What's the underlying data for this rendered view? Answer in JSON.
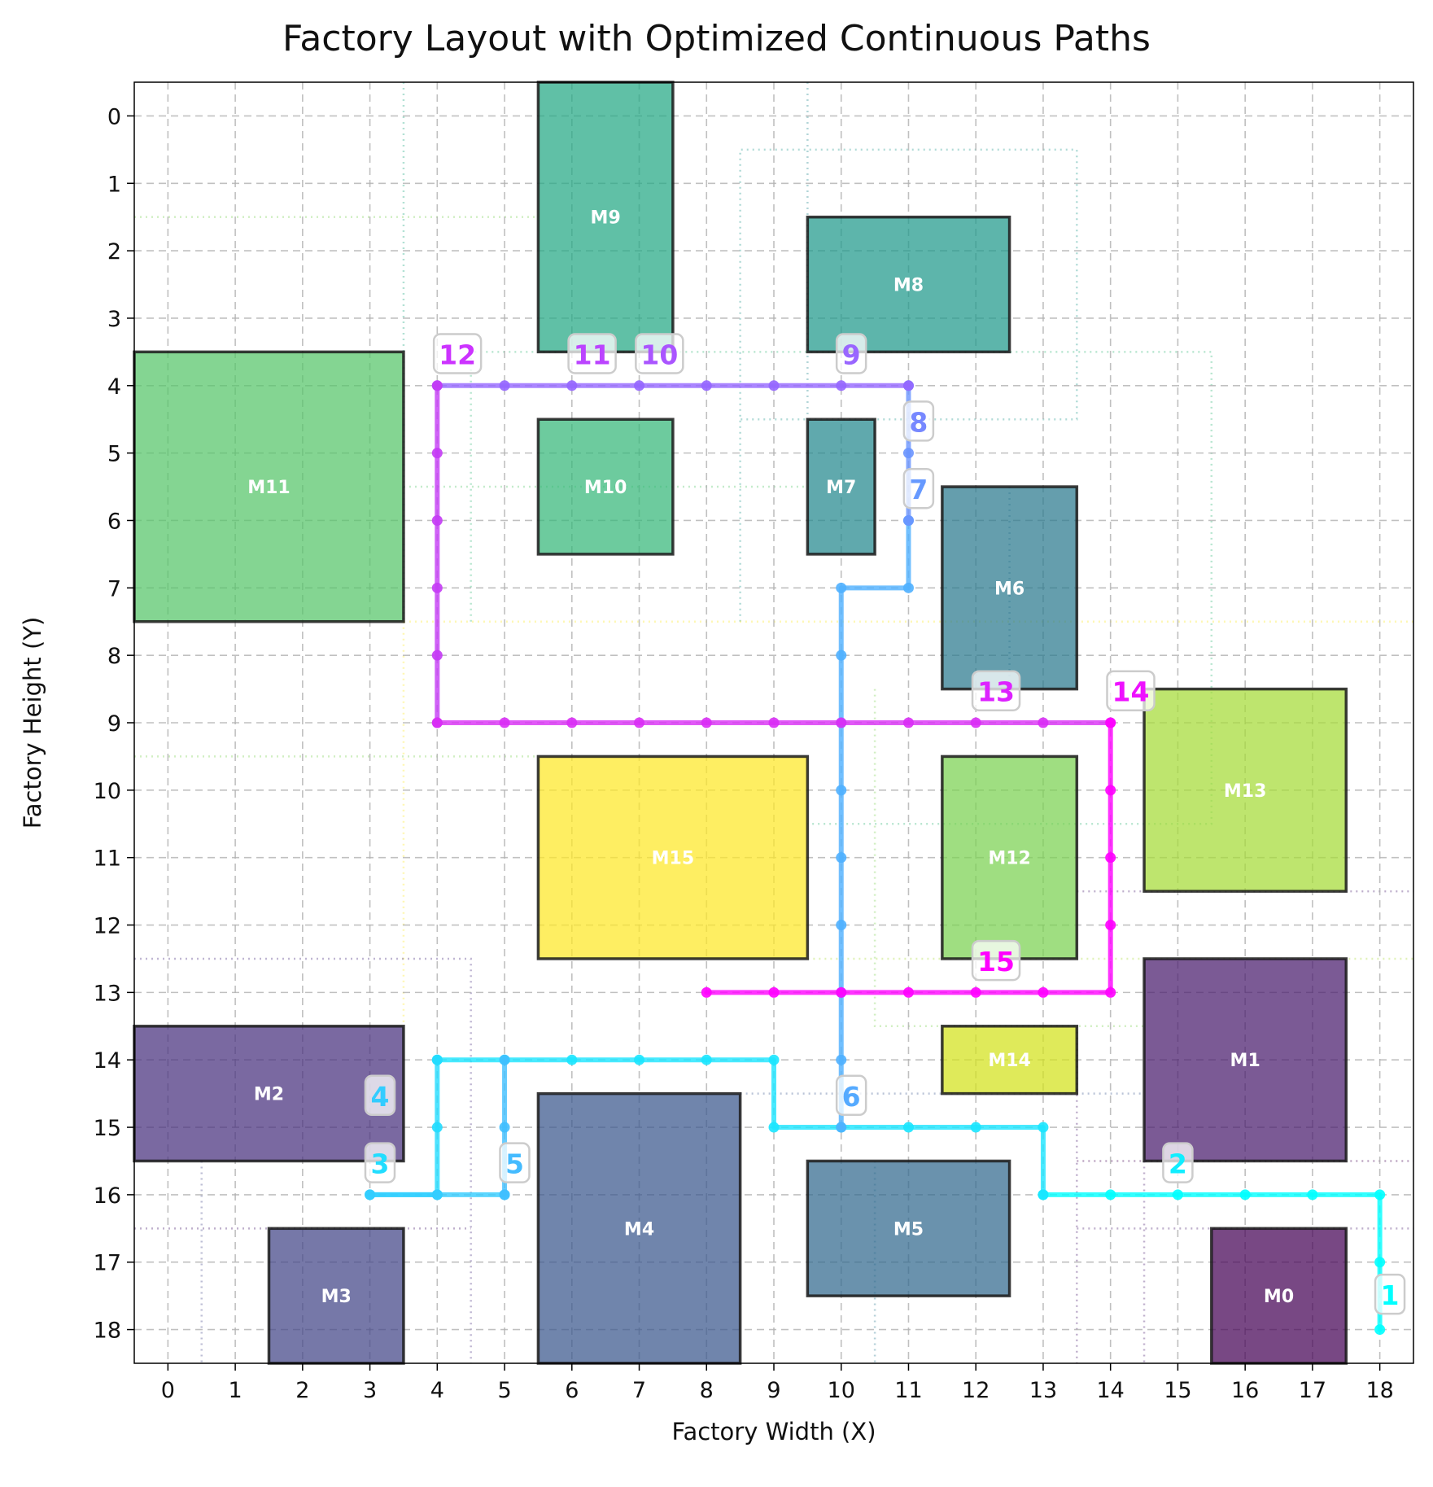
{
  "chart_data": {
    "type": "factory-layout",
    "title": "Factory Layout with Optimized Continuous Paths",
    "xlabel": "Factory Width (X)",
    "ylabel": "Factory Height (Y)",
    "xlim": [
      -0.5,
      18.5
    ],
    "ylim": [
      -0.5,
      18.5
    ],
    "y_inverted": true,
    "x_ticks": [
      0,
      1,
      2,
      3,
      4,
      5,
      6,
      7,
      8,
      9,
      10,
      11,
      12,
      13,
      14,
      15,
      16,
      17,
      18
    ],
    "y_ticks": [
      0,
      1,
      2,
      3,
      4,
      5,
      6,
      7,
      8,
      9,
      10,
      11,
      12,
      13,
      14,
      15,
      16,
      17,
      18
    ],
    "grid": true,
    "machines": [
      {
        "name": "M0",
        "x0": 15.5,
        "x1": 17.5,
        "y0": 16.5,
        "y1": 18.5,
        "color": "#440154"
      },
      {
        "name": "M1",
        "x0": 14.5,
        "x1": 17.5,
        "y0": 12.5,
        "y1": 15.5,
        "color": "#481a6c"
      },
      {
        "name": "M2",
        "x0": -0.5,
        "x1": 3.5,
        "y0": 13.5,
        "y1": 15.5,
        "color": "#472f7d"
      },
      {
        "name": "M3",
        "x0": 1.5,
        "x1": 3.5,
        "y0": 16.5,
        "y1": 18.5,
        "color": "#414487"
      },
      {
        "name": "M4",
        "x0": 5.5,
        "x1": 8.5,
        "y0": 14.5,
        "y1": 18.5,
        "color": "#39568c"
      },
      {
        "name": "M5",
        "x0": 9.5,
        "x1": 12.5,
        "y0": 15.5,
        "y1": 17.5,
        "color": "#31688e"
      },
      {
        "name": "M6",
        "x0": 11.5,
        "x1": 13.5,
        "y0": 5.5,
        "y1": 8.5,
        "color": "#2a788e"
      },
      {
        "name": "M7",
        "x0": 9.5,
        "x1": 10.5,
        "y0": 4.5,
        "y1": 6.5,
        "color": "#23888e"
      },
      {
        "name": "M8",
        "x0": 9.5,
        "x1": 12.5,
        "y0": 1.5,
        "y1": 3.5,
        "color": "#1f988b"
      },
      {
        "name": "M9",
        "x0": 5.5,
        "x1": 7.5,
        "y0": -0.5,
        "y1": 3.5,
        "color": "#22a884"
      },
      {
        "name": "M10",
        "x0": 5.5,
        "x1": 7.5,
        "y0": 4.5,
        "y1": 6.5,
        "color": "#35b779"
      },
      {
        "name": "M11",
        "x0": -0.5,
        "x1": 3.5,
        "y0": 3.5,
        "y1": 7.5,
        "color": "#54c568"
      },
      {
        "name": "M12",
        "x0": 11.5,
        "x1": 13.5,
        "y0": 9.5,
        "y1": 12.5,
        "color": "#7ad151"
      },
      {
        "name": "M13",
        "x0": 14.5,
        "x1": 17.5,
        "y0": 8.5,
        "y1": 11.5,
        "color": "#a5db36"
      },
      {
        "name": "M14",
        "x0": 11.5,
        "x1": 13.5,
        "y0": 13.5,
        "y1": 14.5,
        "color": "#d2e21b"
      },
      {
        "name": "M15",
        "x0": 5.5,
        "x1": 9.5,
        "y0": 9.5,
        "y1": 12.5,
        "color": "#fde725"
      }
    ],
    "paths": [
      {
        "color": "#00ffff",
        "points": [
          [
            18,
            18
          ],
          [
            18,
            17
          ],
          [
            18,
            16
          ],
          [
            17,
            16
          ],
          [
            16,
            16
          ],
          [
            15,
            16
          ],
          [
            14,
            16
          ],
          [
            13,
            16
          ]
        ]
      },
      {
        "color": "#1ae5ff",
        "points": [
          [
            13,
            16
          ],
          [
            13,
            15
          ],
          [
            12,
            15
          ],
          [
            11,
            15
          ],
          [
            10,
            15
          ],
          [
            9,
            15
          ],
          [
            9,
            14
          ],
          [
            8,
            14
          ],
          [
            7,
            14
          ],
          [
            6,
            14
          ],
          [
            5,
            14
          ],
          [
            4,
            14
          ]
        ]
      },
      {
        "color": "#22dcff",
        "points": [
          [
            4,
            14
          ],
          [
            4,
            15
          ],
          [
            4,
            16
          ],
          [
            3,
            16
          ]
        ]
      },
      {
        "color": "#33ccff",
        "points": [
          [
            3,
            16
          ],
          [
            4,
            16
          ],
          [
            5,
            16
          ]
        ]
      },
      {
        "color": "#40bfff",
        "points": [
          [
            5,
            16
          ],
          [
            5,
            15
          ],
          [
            5,
            14
          ]
        ]
      },
      {
        "color": "#4fb0ff",
        "points": [
          [
            10,
            15
          ],
          [
            10,
            14
          ],
          [
            10,
            13
          ],
          [
            10,
            12
          ],
          [
            10,
            11
          ],
          [
            10,
            10
          ],
          [
            10,
            9
          ],
          [
            10,
            8
          ],
          [
            10,
            7
          ],
          [
            11,
            7
          ],
          [
            11,
            6
          ]
        ]
      },
      {
        "color": "#6a95ff",
        "points": [
          [
            11,
            6
          ],
          [
            11,
            5
          ],
          [
            11,
            4
          ]
        ]
      },
      {
        "color": "#9566ff",
        "points": [
          [
            11,
            4
          ],
          [
            10,
            4
          ],
          [
            9,
            4
          ],
          [
            8,
            4
          ],
          [
            7,
            4
          ],
          [
            6,
            4
          ],
          [
            5,
            4
          ],
          [
            4,
            4
          ]
        ]
      },
      {
        "color": "#c43bf5",
        "points": [
          [
            4,
            4
          ],
          [
            4,
            5
          ],
          [
            4,
            6
          ],
          [
            4,
            7
          ],
          [
            4,
            8
          ],
          [
            4,
            9
          ]
        ]
      },
      {
        "color": "#d92ef5",
        "points": [
          [
            4,
            9
          ],
          [
            5,
            9
          ],
          [
            6,
            9
          ],
          [
            7,
            9
          ],
          [
            8,
            9
          ],
          [
            9,
            9
          ],
          [
            10,
            9
          ],
          [
            11,
            9
          ],
          [
            12,
            9
          ],
          [
            13,
            9
          ],
          [
            14,
            9
          ]
        ]
      },
      {
        "color": "#ff00ff",
        "points": [
          [
            14,
            9
          ],
          [
            14,
            10
          ],
          [
            14,
            11
          ],
          [
            14,
            12
          ],
          [
            14,
            13
          ],
          [
            13,
            13
          ],
          [
            12,
            13
          ],
          [
            11,
            13
          ],
          [
            10,
            13
          ],
          [
            9,
            13
          ],
          [
            8,
            13
          ]
        ]
      }
    ],
    "step_labels": [
      {
        "text": "1",
        "x": 18.15,
        "y": 17.5,
        "color": "#00ffff"
      },
      {
        "text": "2",
        "x": 15.0,
        "y": 15.55,
        "color": "#11eeff"
      },
      {
        "text": "3",
        "x": 3.15,
        "y": 15.55,
        "color": "#22ddff"
      },
      {
        "text": "4",
        "x": 3.15,
        "y": 14.55,
        "color": "#33ccff"
      },
      {
        "text": "5",
        "x": 5.15,
        "y": 15.55,
        "color": "#44bbff"
      },
      {
        "text": "6",
        "x": 10.15,
        "y": 14.55,
        "color": "#55aaff"
      },
      {
        "text": "7",
        "x": 11.15,
        "y": 5.55,
        "color": "#6699ff"
      },
      {
        "text": "8",
        "x": 11.15,
        "y": 4.55,
        "color": "#7788ff"
      },
      {
        "text": "9",
        "x": 10.15,
        "y": 3.55,
        "color": "#9966ff"
      },
      {
        "text": "10",
        "x": 7.3,
        "y": 3.55,
        "color": "#aa55ff"
      },
      {
        "text": "11",
        "x": 6.3,
        "y": 3.55,
        "color": "#bb44ff"
      },
      {
        "text": "12",
        "x": 4.3,
        "y": 3.55,
        "color": "#cc33ff"
      },
      {
        "text": "13",
        "x": 12.3,
        "y": 8.55,
        "color": "#dd22ff"
      },
      {
        "text": "14",
        "x": 14.3,
        "y": 8.55,
        "color": "#ee11ff"
      },
      {
        "text": "15",
        "x": 12.3,
        "y": 12.55,
        "color": "#ff00ff"
      }
    ],
    "background_guides": [
      {
        "color": "#7ad151",
        "points": [
          [
            -0.5,
            1.5
          ],
          [
            5.5,
            1.5
          ]
        ]
      },
      {
        "color": "#1f988b",
        "points": [
          [
            8.5,
            7.5
          ],
          [
            8.5,
            0.5
          ],
          [
            13.5,
            0.5
          ],
          [
            13.5,
            4.5
          ],
          [
            8.5,
            4.5
          ]
        ]
      },
      {
        "color": "#35b779",
        "points": [
          [
            4.5,
            7.5
          ],
          [
            4.5,
            3.5
          ],
          [
            15.5,
            3.5
          ],
          [
            15.5,
            10.5
          ],
          [
            9.5,
            10.5
          ]
        ]
      },
      {
        "color": "#54c568",
        "points": [
          [
            3.5,
            5.5
          ],
          [
            9.5,
            5.5
          ]
        ]
      },
      {
        "color": "#22a884",
        "points": [
          [
            3.5,
            -0.5
          ],
          [
            3.5,
            7.5
          ]
        ]
      },
      {
        "color": "#fde725",
        "points": [
          [
            3.5,
            7.5
          ],
          [
            18.5,
            7.5
          ]
        ]
      },
      {
        "color": "#fde725",
        "points": [
          [
            3.5,
            7.5
          ],
          [
            3.5,
            13.5
          ]
        ]
      },
      {
        "color": "#7ad151",
        "points": [
          [
            -0.5,
            9.5
          ],
          [
            5.5,
            9.5
          ]
        ]
      },
      {
        "color": "#7ad151",
        "points": [
          [
            10.5,
            8.5
          ],
          [
            10.5,
            13.5
          ],
          [
            14.5,
            13.5
          ]
        ]
      },
      {
        "color": "#31688e",
        "points": [
          [
            12.5,
            5.5
          ],
          [
            12.5,
            8.5
          ]
        ]
      },
      {
        "color": "#472f7d",
        "points": [
          [
            -0.5,
            12.5
          ],
          [
            4.5,
            12.5
          ],
          [
            4.5,
            18.5
          ]
        ]
      },
      {
        "color": "#481a6c",
        "points": [
          [
            -0.5,
            16.5
          ],
          [
            4.5,
            16.5
          ]
        ]
      },
      {
        "color": "#414487",
        "points": [
          [
            0.5,
            15.5
          ],
          [
            0.5,
            18.5
          ]
        ]
      },
      {
        "color": "#a5db36",
        "points": [
          [
            9.5,
            12.5
          ],
          [
            18.5,
            12.5
          ]
        ]
      },
      {
        "color": "#39568c",
        "points": [
          [
            8.5,
            14.5
          ],
          [
            14.5,
            14.5
          ]
        ]
      },
      {
        "color": "#2a788e",
        "points": [
          [
            10.5,
            15.5
          ],
          [
            10.5,
            18.5
          ]
        ]
      },
      {
        "color": "#440154",
        "points": [
          [
            13.5,
            15.5
          ],
          [
            18.5,
            15.5
          ]
        ]
      },
      {
        "color": "#481a6c",
        "points": [
          [
            13.5,
            13.5
          ],
          [
            13.5,
            18.5
          ]
        ]
      },
      {
        "color": "#481a6c",
        "points": [
          [
            13.5,
            16.5
          ],
          [
            18.5,
            16.5
          ]
        ]
      },
      {
        "color": "#481a6c",
        "points": [
          [
            14.5,
            15.5
          ],
          [
            14.5,
            18.5
          ]
        ]
      },
      {
        "color": "#481a6c",
        "points": [
          [
            13.5,
            11.5
          ],
          [
            18.5,
            11.5
          ]
        ]
      },
      {
        "color": "#23888e",
        "points": [
          [
            9.5,
            -0.5
          ],
          [
            9.5,
            4.5
          ]
        ]
      }
    ]
  }
}
